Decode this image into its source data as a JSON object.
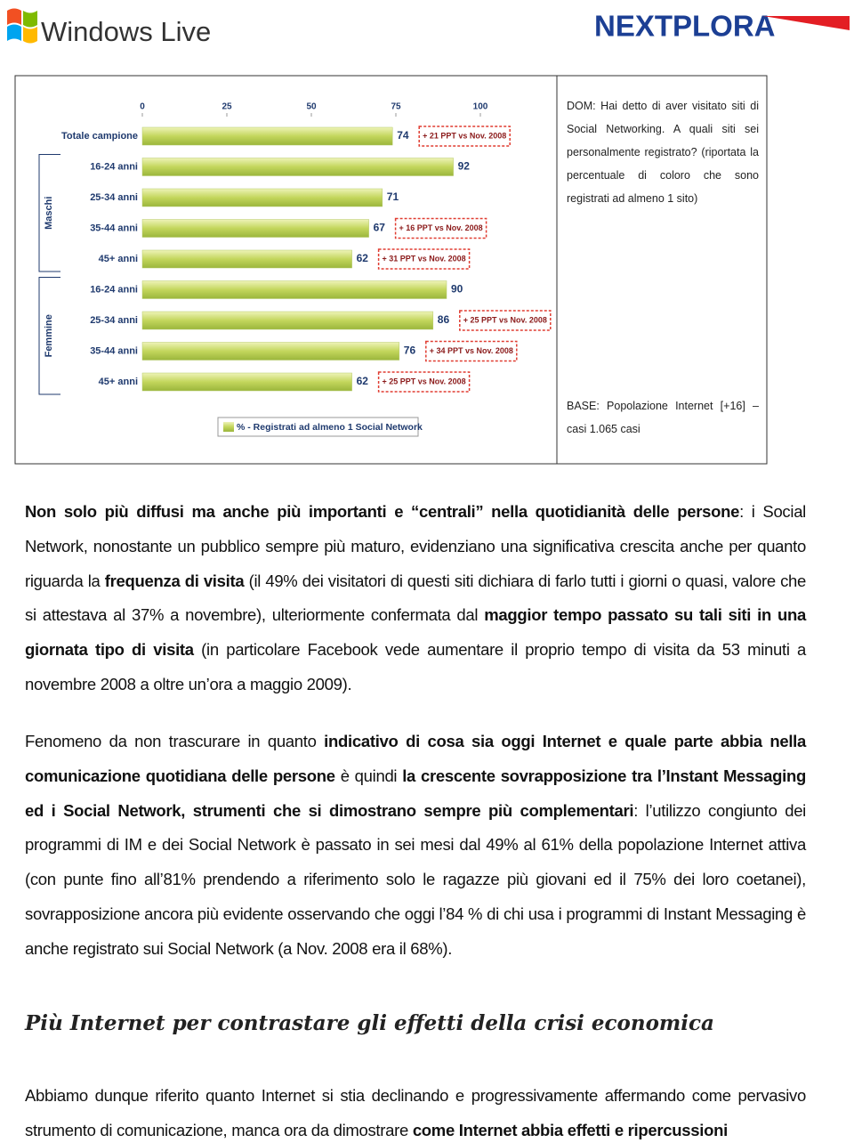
{
  "header": {
    "left_logo": "Windows Live",
    "right_logo": "NEXTPLORA"
  },
  "chart_data": {
    "type": "bar",
    "orientation": "horizontal",
    "categories": [
      "Totale campione",
      "16-24 anni",
      "25-34 anni",
      "35-44 anni",
      "45+ anni",
      "16-24 anni",
      "25-34 anni",
      "35-44 anni",
      "45+ anni"
    ],
    "values": [
      74,
      92,
      71,
      67,
      62,
      90,
      86,
      76,
      62
    ],
    "annotations": [
      "+ 21 PPT vs Nov. 2008",
      null,
      null,
      "+ 16 PPT vs Nov. 2008",
      "+ 31 PPT vs Nov. 2008",
      null,
      "+ 25 PPT vs Nov. 2008",
      "+ 34 PPT vs Nov. 2008",
      "+ 25 PPT vs Nov. 2008"
    ],
    "groups": [
      "Maschi",
      "Femmine"
    ],
    "legend": "% - Registrati ad almeno 1 Social Network",
    "color": "#c3d65c",
    "xlim": [
      0,
      100
    ],
    "xticks": [
      0,
      25,
      50,
      75,
      100
    ],
    "grid": false
  },
  "sidebar": {
    "question": "DOM: Hai detto di aver visitato siti di Social Networking. A quali siti sei personalmente registrato? (riportata la percentuale di coloro che sono registrati ad almeno 1 sito)",
    "base": "BASE: Popolazione Internet [+16] – casi 1.065 casi"
  },
  "paragraphs": [
    [
      {
        "text": "Non solo più diffusi ma anche più importanti e “centrali” nella quotidianità delle persone",
        "bold": true
      },
      {
        "text": ": i Social Network, nonostante un pubblico sempre più maturo, evidenziano una significativa crescita anche per quanto riguarda la ",
        "bold": false
      },
      {
        "text": "frequenza di visita",
        "bold": true
      },
      {
        "text": " (il 49% dei visitatori di questi siti dichiara di farlo tutti i giorni o quasi, valore che si attestava al 37% a novembre), ulteriormente confermata dal ",
        "bold": false
      },
      {
        "text": "maggior tempo passato su tali siti in una giornata tipo di visita",
        "bold": true
      },
      {
        "text": " (in particolare Facebook vede aumentare il proprio tempo di visita da 53 minuti a novembre 2008 a oltre un’ora a maggio 2009).",
        "bold": false
      }
    ],
    [
      {
        "text": "Fenomeno da non trascurare in quanto ",
        "bold": false
      },
      {
        "text": "indicativo di cosa sia oggi Internet e quale parte abbia nella comunicazione quotidiana delle persone",
        "bold": true
      },
      {
        "text": " è quindi ",
        "bold": false
      },
      {
        "text": "la crescente sovrapposizione tra l’Instant Messaging ed i Social Network, strumenti che si dimostrano sempre più complementari",
        "bold": true
      },
      {
        "text": ": l’utilizzo congiunto dei programmi di IM e dei Social Network è passato in sei mesi dal 49% al 61% della popolazione Internet attiva (con punte fino all’81% prendendo a riferimento solo le ragazze più giovani ed il 75% dei loro coetanei), sovrapposizione ancora più evidente osservando che oggi l’84 % di chi usa i programmi di Instant Messaging è anche registrato sui Social Network (a Nov. 2008 era il 68%).",
        "bold": false
      }
    ]
  ],
  "heading": "Più Internet per contrastare gli effetti della crisi economica",
  "closing": [
    {
      "text": "Abbiamo dunque riferito quanto Internet si stia declinando e progressivamente affermando come pervasivo strumento di comunicazione, manca ora da dimostrare ",
      "bold": false
    },
    {
      "text": "come Internet abbia effetti e ripercussioni",
      "bold": true
    }
  ]
}
